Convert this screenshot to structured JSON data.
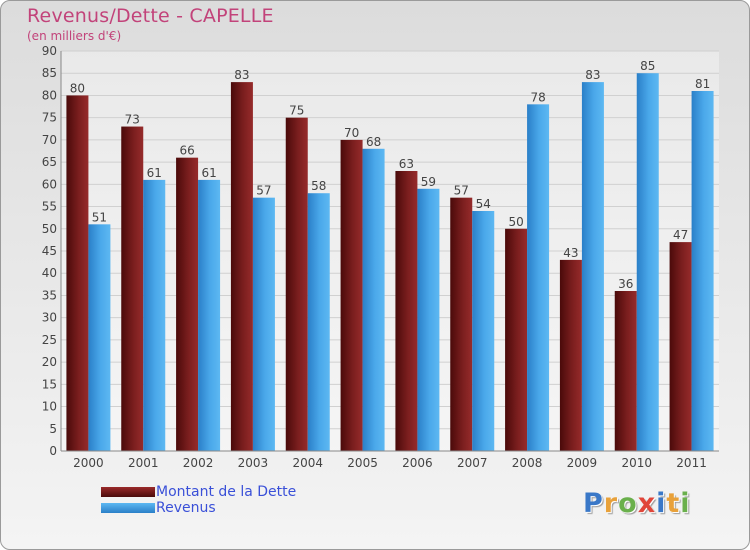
{
  "header": {
    "title": "Revenus/Dette - CAPELLE",
    "subtitle": "(en milliers d'€)"
  },
  "logo": {
    "text": "Proxiti",
    "letter_colors": [
      "#3a78c8",
      "#e8a13a",
      "#6ab04c",
      "#e0463a",
      "#3a78c8",
      "#e8a13a",
      "#6ab04c"
    ]
  },
  "chart_data": {
    "type": "bar",
    "categories": [
      "2000",
      "2001",
      "2002",
      "2003",
      "2004",
      "2005",
      "2006",
      "2007",
      "2008",
      "2009",
      "2010",
      "2011"
    ],
    "series": [
      {
        "name": "Montant de la Dette",
        "values": [
          80,
          73,
          66,
          83,
          75,
          70,
          63,
          57,
          50,
          43,
          36,
          47
        ],
        "color": "#7a1e1e"
      },
      {
        "name": "Revenus",
        "values": [
          51,
          61,
          61,
          57,
          58,
          68,
          59,
          54,
          78,
          83,
          85,
          81
        ],
        "color": "#3d9ee0"
      }
    ],
    "ylim": [
      0,
      90
    ],
    "ytick_step": 5,
    "grid": true,
    "legend_position": "bottom-left",
    "xlabel": "",
    "ylabel": ""
  }
}
